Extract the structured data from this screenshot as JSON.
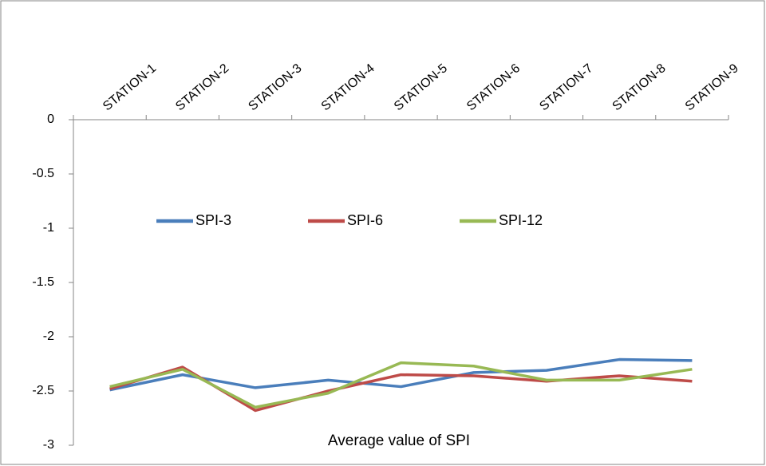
{
  "chart_data": {
    "type": "line",
    "title": "Average value of SPI",
    "categories": [
      "STATION-1",
      "STATION-2",
      "STATION-3",
      "STATION-4",
      "STATION-5",
      "STATION-6",
      "STATION-7",
      "STATION-8",
      "STATION-9"
    ],
    "series": [
      {
        "name": "SPI-3",
        "color": "#4a7ebb",
        "values": [
          -2.49,
          -2.35,
          -2.47,
          -2.4,
          -2.46,
          -2.33,
          -2.31,
          -2.21,
          -2.22
        ]
      },
      {
        "name": "SPI-6",
        "color": "#be4b48",
        "values": [
          -2.48,
          -2.28,
          -2.68,
          -2.5,
          -2.35,
          -2.36,
          -2.41,
          -2.36,
          -2.41
        ]
      },
      {
        "name": "SPI-12",
        "color": "#98b954",
        "values": [
          -2.46,
          -2.3,
          -2.65,
          -2.52,
          -2.24,
          -2.27,
          -2.4,
          -2.4,
          -2.3
        ]
      }
    ],
    "ylim": [
      -3,
      0
    ],
    "yticks": [
      0,
      -0.5,
      -1,
      -1.5,
      -2,
      -2.5,
      -3
    ],
    "x_axis_position": "top",
    "grid": false,
    "legend": "center"
  }
}
